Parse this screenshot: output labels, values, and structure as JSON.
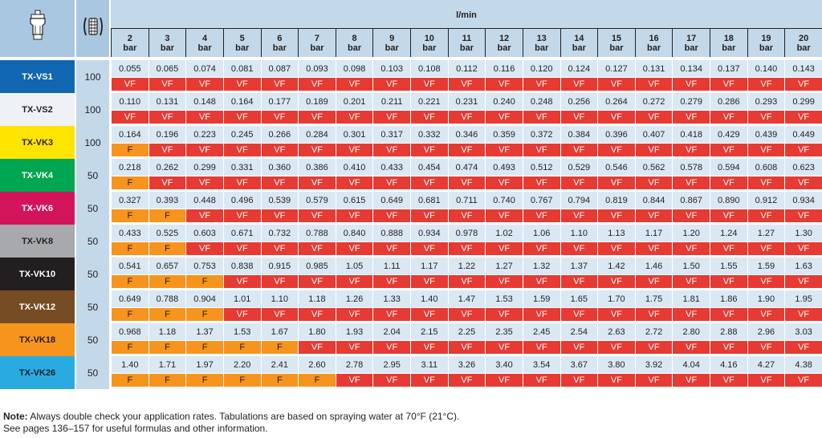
{
  "header": {
    "unit_label": "l/min",
    "pressures": [
      {
        "num": "2",
        "unit": "bar"
      },
      {
        "num": "3",
        "unit": "bar"
      },
      {
        "num": "4",
        "unit": "bar"
      },
      {
        "num": "5",
        "unit": "bar"
      },
      {
        "num": "6",
        "unit": "bar"
      },
      {
        "num": "7",
        "unit": "bar"
      },
      {
        "num": "8",
        "unit": "bar"
      },
      {
        "num": "9",
        "unit": "bar"
      },
      {
        "num": "10",
        "unit": "bar"
      },
      {
        "num": "11",
        "unit": "bar"
      },
      {
        "num": "12",
        "unit": "bar"
      },
      {
        "num": "13",
        "unit": "bar"
      },
      {
        "num": "14",
        "unit": "bar"
      },
      {
        "num": "15",
        "unit": "bar"
      },
      {
        "num": "16",
        "unit": "bar"
      },
      {
        "num": "17",
        "unit": "bar"
      },
      {
        "num": "18",
        "unit": "bar"
      },
      {
        "num": "19",
        "unit": "bar"
      },
      {
        "num": "20",
        "unit": "bar"
      }
    ]
  },
  "rows": [
    {
      "name": "TX-VS1",
      "color": "#1166b2",
      "text_color": "#ffffff",
      "mesh": "100",
      "values": [
        "0.055",
        "0.065",
        "0.074",
        "0.081",
        "0.087",
        "0.093",
        "0.098",
        "0.103",
        "0.108",
        "0.112",
        "0.116",
        "0.120",
        "0.124",
        "0.127",
        "0.131",
        "0.134",
        "0.137",
        "0.140",
        "0.143"
      ],
      "classes": [
        "VF",
        "VF",
        "VF",
        "VF",
        "VF",
        "VF",
        "VF",
        "VF",
        "VF",
        "VF",
        "VF",
        "VF",
        "VF",
        "VF",
        "VF",
        "VF",
        "VF",
        "VF",
        "VF"
      ]
    },
    {
      "name": "TX-VS2",
      "color": "#eef2f6",
      "text_color": "#231f20",
      "mesh": "100",
      "values": [
        "0.110",
        "0.131",
        "0.148",
        "0.164",
        "0.177",
        "0.189",
        "0.201",
        "0.211",
        "0.221",
        "0.231",
        "0.240",
        "0.248",
        "0.256",
        "0.264",
        "0.272",
        "0.279",
        "0.286",
        "0.293",
        "0.299"
      ],
      "classes": [
        "VF",
        "VF",
        "VF",
        "VF",
        "VF",
        "VF",
        "VF",
        "VF",
        "VF",
        "VF",
        "VF",
        "VF",
        "VF",
        "VF",
        "VF",
        "VF",
        "VF",
        "VF",
        "VF"
      ]
    },
    {
      "name": "TX-VK3",
      "color": "#ffe400",
      "text_color": "#231f20",
      "mesh": "100",
      "values": [
        "0.164",
        "0.196",
        "0.223",
        "0.245",
        "0.266",
        "0.284",
        "0.301",
        "0.317",
        "0.332",
        "0.346",
        "0.359",
        "0.372",
        "0.384",
        "0.396",
        "0.407",
        "0.418",
        "0.429",
        "0.439",
        "0.449"
      ],
      "classes": [
        "F",
        "VF",
        "VF",
        "VF",
        "VF",
        "VF",
        "VF",
        "VF",
        "VF",
        "VF",
        "VF",
        "VF",
        "VF",
        "VF",
        "VF",
        "VF",
        "VF",
        "VF",
        "VF"
      ]
    },
    {
      "name": "TX-VK4",
      "color": "#00a651",
      "text_color": "#ffffff",
      "mesh": "50",
      "values": [
        "0.218",
        "0.262",
        "0.299",
        "0.331",
        "0.360",
        "0.386",
        "0.410",
        "0.433",
        "0.454",
        "0.474",
        "0.493",
        "0.512",
        "0.529",
        "0.546",
        "0.562",
        "0.578",
        "0.594",
        "0.608",
        "0.623"
      ],
      "classes": [
        "F",
        "VF",
        "VF",
        "VF",
        "VF",
        "VF",
        "VF",
        "VF",
        "VF",
        "VF",
        "VF",
        "VF",
        "VF",
        "VF",
        "VF",
        "VF",
        "VF",
        "VF",
        "VF"
      ]
    },
    {
      "name": "TX-VK6",
      "color": "#d4145a",
      "text_color": "#ffffff",
      "mesh": "50",
      "values": [
        "0.327",
        "0.393",
        "0.448",
        "0.496",
        "0.539",
        "0.579",
        "0.615",
        "0.649",
        "0.681",
        "0.711",
        "0.740",
        "0.767",
        "0.794",
        "0.819",
        "0.844",
        "0.867",
        "0.890",
        "0.912",
        "0.934"
      ],
      "classes": [
        "F",
        "F",
        "VF",
        "VF",
        "VF",
        "VF",
        "VF",
        "VF",
        "VF",
        "VF",
        "VF",
        "VF",
        "VF",
        "VF",
        "VF",
        "VF",
        "VF",
        "VF",
        "VF"
      ]
    },
    {
      "name": "TX-VK8",
      "color": "#a7a9ac",
      "text_color": "#231f20",
      "mesh": "50",
      "values": [
        "0.433",
        "0.525",
        "0.603",
        "0.671",
        "0.732",
        "0.788",
        "0.840",
        "0.888",
        "0.934",
        "0.978",
        "1.02",
        "1.06",
        "1.10",
        "1.13",
        "1.17",
        "1.20",
        "1.24",
        "1.27",
        "1.30"
      ],
      "classes": [
        "F",
        "F",
        "VF",
        "VF",
        "VF",
        "VF",
        "VF",
        "VF",
        "VF",
        "VF",
        "VF",
        "VF",
        "VF",
        "VF",
        "VF",
        "VF",
        "VF",
        "VF",
        "VF"
      ]
    },
    {
      "name": "TX-VK10",
      "color": "#231f20",
      "text_color": "#ffffff",
      "mesh": "50",
      "values": [
        "0.541",
        "0.657",
        "0.753",
        "0.838",
        "0.915",
        "0.985",
        "1.05",
        "1.11",
        "1.17",
        "1.22",
        "1.27",
        "1.32",
        "1.37",
        "1.42",
        "1.46",
        "1.50",
        "1.55",
        "1.59",
        "1.63"
      ],
      "classes": [
        "F",
        "F",
        "F",
        "VF",
        "VF",
        "VF",
        "VF",
        "VF",
        "VF",
        "VF",
        "VF",
        "VF",
        "VF",
        "VF",
        "VF",
        "VF",
        "VF",
        "VF",
        "VF"
      ]
    },
    {
      "name": "TX-VK12",
      "color": "#754c24",
      "text_color": "#ffffff",
      "mesh": "50",
      "values": [
        "0.649",
        "0.788",
        "0.904",
        "1.01",
        "1.10",
        "1.18",
        "1.26",
        "1.33",
        "1.40",
        "1.47",
        "1.53",
        "1.59",
        "1.65",
        "1.70",
        "1.75",
        "1.81",
        "1.86",
        "1.90",
        "1.95"
      ],
      "classes": [
        "F",
        "F",
        "F",
        "VF",
        "VF",
        "VF",
        "VF",
        "VF",
        "VF",
        "VF",
        "VF",
        "VF",
        "VF",
        "VF",
        "VF",
        "VF",
        "VF",
        "VF",
        "VF"
      ]
    },
    {
      "name": "TX-VK18",
      "color": "#f7941d",
      "text_color": "#231f20",
      "mesh": "50",
      "values": [
        "0.968",
        "1.18",
        "1.37",
        "1.53",
        "1.67",
        "1.80",
        "1.93",
        "2.04",
        "2.15",
        "2.25",
        "2.35",
        "2.45",
        "2.54",
        "2.63",
        "2.72",
        "2.80",
        "2.88",
        "2.96",
        "3.03"
      ],
      "classes": [
        "F",
        "F",
        "F",
        "F",
        "F",
        "VF",
        "VF",
        "VF",
        "VF",
        "VF",
        "VF",
        "VF",
        "VF",
        "VF",
        "VF",
        "VF",
        "VF",
        "VF",
        "VF"
      ]
    },
    {
      "name": "TX-VK26",
      "color": "#29abe2",
      "text_color": "#231f20",
      "mesh": "50",
      "values": [
        "1.40",
        "1.71",
        "1.97",
        "2.20",
        "2.41",
        "2.60",
        "2.78",
        "2.95",
        "3.11",
        "3.26",
        "3.40",
        "3.54",
        "3.67",
        "3.80",
        "3.92",
        "4.04",
        "4.16",
        "4.27",
        "4.38"
      ],
      "classes": [
        "F",
        "F",
        "F",
        "F",
        "F",
        "F",
        "VF",
        "VF",
        "VF",
        "VF",
        "VF",
        "VF",
        "VF",
        "VF",
        "VF",
        "VF",
        "VF",
        "VF",
        "VF"
      ]
    }
  ],
  "footer": {
    "note_label": "Note:",
    "note_text": " Always double check your application rates. Tabulations are based on spraying water at 70°F (21°C).",
    "line2": "See pages 136–157 for useful formulas and other information."
  },
  "icons": {
    "nozzle": "nozzle-icon",
    "strainer": "strainer-mesh-icon"
  },
  "colors": {
    "header_bg": "#c3d9ea",
    "icon_header_bg": "#a9c7e0",
    "value_bg": "#dae8f3",
    "vf": "#e63a33",
    "f": "#f7941d"
  }
}
